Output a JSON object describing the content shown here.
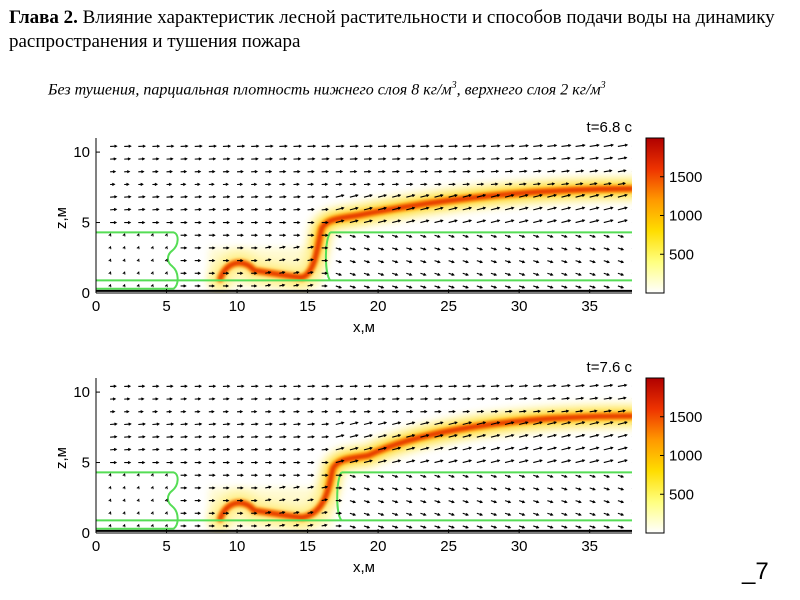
{
  "header": {
    "chapter_label": "Глава 2.",
    "title_text": " Влияние характеристик лесной растительности и способов подачи воды на динамику распространения и тушения пожара"
  },
  "subtitle": {
    "text_main": "Без тушения, парциальная плотность нижнего слоя 8 кг/м",
    "sup1": "3",
    "text_mid": ", верхнего слоя 2 кг/м",
    "sup2": "3"
  },
  "colors": {
    "vegetation_outline": "#55dd55",
    "ground_line": "#000000",
    "colormap": [
      "#ffffff",
      "#ffff80",
      "#ffdd00",
      "#ff9900",
      "#ee3300",
      "#b00000"
    ]
  },
  "chart_data": [
    {
      "type": "heatmap",
      "time_label": "t=6.8 c",
      "xlabel": "x,м",
      "ylabel": "z,м",
      "xlim": [
        0,
        38
      ],
      "ylim": [
        0,
        11
      ],
      "xticks": [
        "0",
        "5",
        "10",
        "15",
        "20",
        "25",
        "30",
        "35"
      ],
      "yticks": [
        "0",
        "5",
        "10"
      ],
      "colorbar": {
        "ticks": [
          "500",
          "1000",
          "1500"
        ],
        "range": [
          0,
          2000
        ]
      },
      "field": "temperature with velocity vectors",
      "vectors": "wind arrows"
    },
    {
      "type": "heatmap",
      "time_label": "t=7.6 c",
      "xlabel": "x,м",
      "ylabel": "z,м",
      "xlim": [
        0,
        38
      ],
      "ylim": [
        0,
        11
      ],
      "xticks": [
        "0",
        "5",
        "10",
        "15",
        "20",
        "25",
        "30",
        "35"
      ],
      "yticks": [
        "0",
        "5",
        "10"
      ],
      "colorbar": {
        "ticks": [
          "500",
          "1000",
          "1500"
        ],
        "range": [
          0,
          2000
        ]
      },
      "field": "temperature with velocity vectors",
      "vectors": "wind arrows"
    }
  ],
  "footer": {
    "page_number": "_7"
  }
}
